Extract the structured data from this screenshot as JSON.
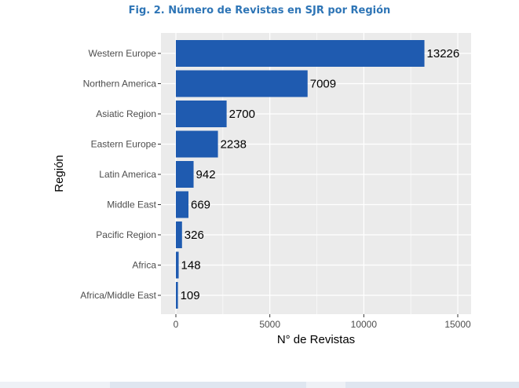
{
  "figure": {
    "title": "Fig.  2. Número de Revistas en SJR por Región"
  },
  "colors": {
    "bar": "#1f5bb0",
    "panel_bg": "#ebebeb",
    "grid": "#ffffff",
    "title": "#2e75b6"
  },
  "chart_data": {
    "type": "bar",
    "orientation": "horizontal",
    "categories": [
      "Western Europe",
      "Northern America",
      "Asiatic Region",
      "Eastern Europe",
      "Latin America",
      "Middle East",
      "Pacific Region",
      "Africa",
      "Africa/Middle East"
    ],
    "values": [
      13226,
      7009,
      2700,
      2238,
      942,
      669,
      326,
      148,
      109
    ],
    "xlabel": "N° de Revistas",
    "ylabel": "Región",
    "xlim": [
      0,
      15000
    ],
    "xticks": [
      "0",
      "5000",
      "10000",
      "15000"
    ],
    "grid": true,
    "legend": "none"
  }
}
